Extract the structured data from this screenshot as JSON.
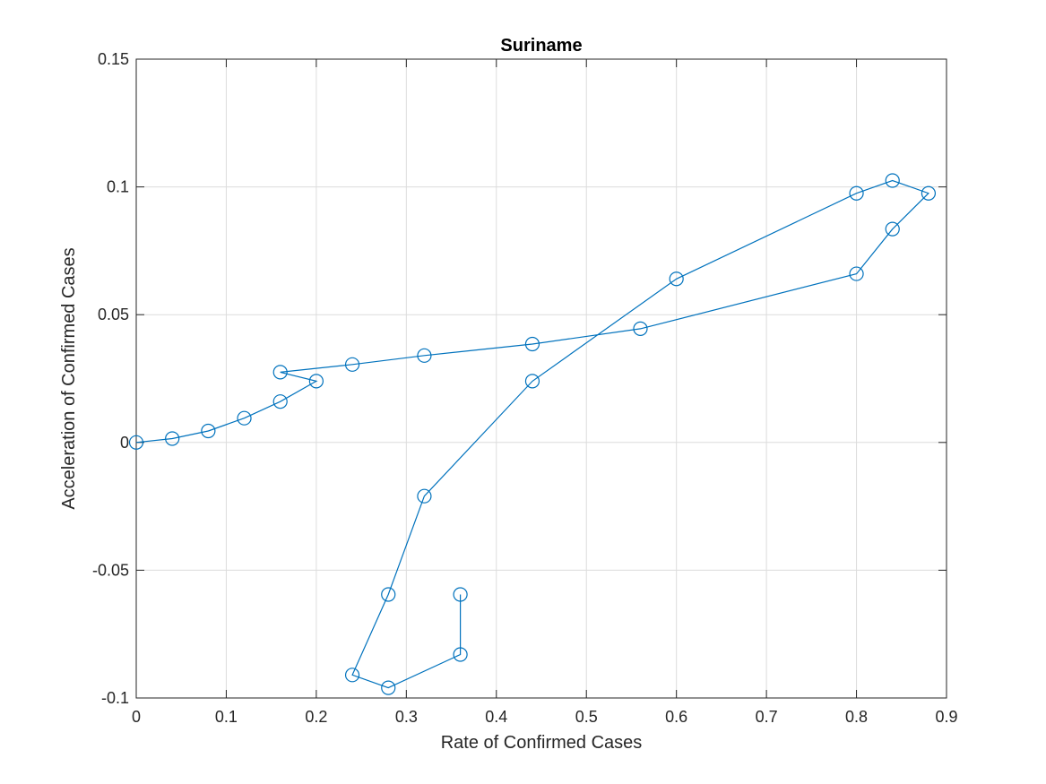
{
  "chart_data": {
    "type": "line",
    "title": "Suriname",
    "xlabel": "Rate of Confirmed Cases",
    "ylabel": "Acceleration of Confirmed Cases",
    "xlim": [
      0,
      0.9
    ],
    "ylim": [
      -0.1,
      0.15
    ],
    "xticks": [
      "0",
      "0.1",
      "0.2",
      "0.3",
      "0.4",
      "0.5",
      "0.6",
      "0.7",
      "0.8",
      "0.9"
    ],
    "yticks": [
      "-0.1",
      "-0.05",
      "0",
      "0.05",
      "0.1",
      "0.15"
    ],
    "xtick_values": [
      0,
      0.1,
      0.2,
      0.3,
      0.4,
      0.5,
      0.6,
      0.7,
      0.8,
      0.9
    ],
    "ytick_values": [
      -0.1,
      -0.05,
      0,
      0.05,
      0.1,
      0.15
    ],
    "grid": true,
    "marker": "open-circle",
    "series": [
      {
        "color": "#0072bd",
        "x": [
          0,
          0.04,
          0.08,
          0.12,
          0.16,
          0.2,
          0.16,
          0.24,
          0.32,
          0.44,
          0.56,
          0.8,
          0.84,
          0.88,
          0.84,
          0.8,
          0.6,
          0.44,
          0.32,
          0.28,
          0.24,
          0.28,
          0.36,
          0.36
        ],
        "y": [
          0,
          0.0015,
          0.0045,
          0.0095,
          0.016,
          0.024,
          0.0275,
          0.0305,
          0.034,
          0.0385,
          0.0445,
          0.066,
          0.0835,
          0.0975,
          0.1025,
          0.0975,
          0.064,
          0.024,
          -0.021,
          -0.0595,
          -0.091,
          -0.096,
          -0.083,
          -0.0595
        ]
      }
    ]
  }
}
